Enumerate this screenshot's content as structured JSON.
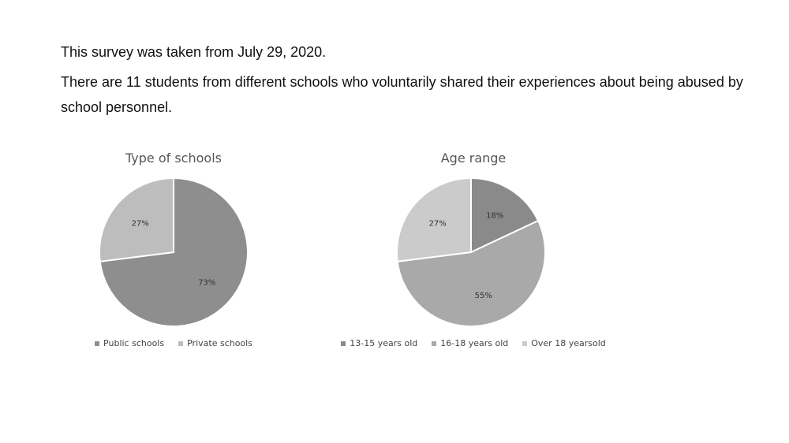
{
  "intro": {
    "line1": "This survey was taken from July 29, 2020.",
    "line2": "There are 11 students from different schools who voluntarily shared their experiences about being abused by school personnel."
  },
  "chart_data": [
    {
      "type": "pie",
      "title": "Type of schools",
      "categories": [
        "Public schools",
        "Private schools"
      ],
      "values": [
        73,
        27
      ],
      "labels": [
        "73%",
        "27%"
      ],
      "colors": [
        "#8e8e8e",
        "#bdbdbd"
      ],
      "legend_position": "bottom",
      "start_angle_deg": 0
    },
    {
      "type": "pie",
      "title": "Age range",
      "categories": [
        "13-15 years old",
        "16-18 years old",
        "Over 18 yearsold"
      ],
      "values": [
        18,
        55,
        27
      ],
      "labels": [
        "18%",
        "55%",
        "27%"
      ],
      "colors": [
        "#8a8a8a",
        "#a9a9a9",
        "#cbcbcb"
      ],
      "legend_position": "bottom",
      "start_angle_deg": 0
    }
  ]
}
